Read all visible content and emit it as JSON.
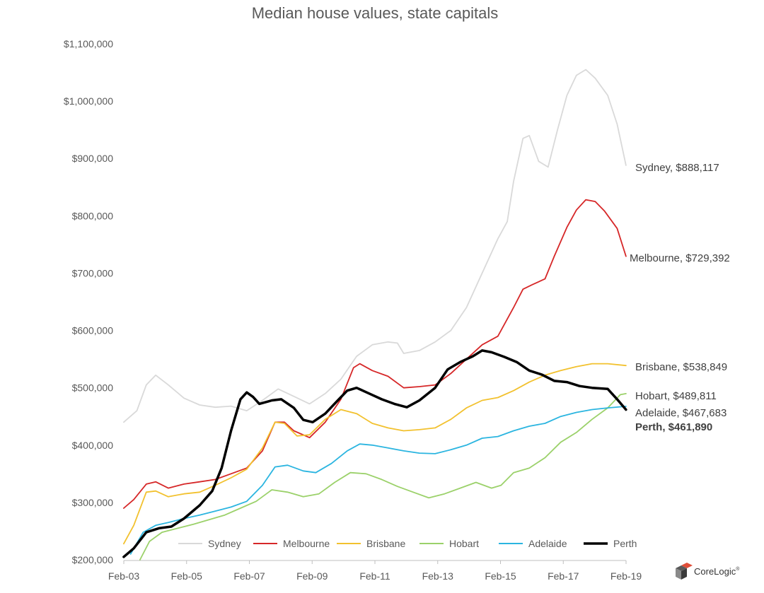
{
  "chart_data": {
    "type": "line",
    "title": "Median house values, state capitals",
    "xlabel": "",
    "ylabel": "",
    "x_ticks": [
      "Feb-03",
      "Feb-05",
      "Feb-07",
      "Feb-09",
      "Feb-11",
      "Feb-13",
      "Feb-15",
      "Feb-17",
      "Feb-19"
    ],
    "x_range": [
      2003.083,
      2019.083
    ],
    "y_ticks": [
      "$200,000",
      "$300,000",
      "$400,000",
      "$500,000",
      "$600,000",
      "$700,000",
      "$800,000",
      "$900,000",
      "$1,000,000",
      "$1,100,000"
    ],
    "ylim": [
      200000,
      1100000
    ],
    "grid": false,
    "legend_position": "bottom",
    "series": [
      {
        "name": "Sydney",
        "color": "#d9d9d9",
        "label": "Sydney, $888,117",
        "bold": false,
        "points": [
          [
            2003.08,
            440000
          ],
          [
            2003.5,
            460000
          ],
          [
            2003.8,
            505000
          ],
          [
            2004.1,
            522000
          ],
          [
            2004.5,
            505000
          ],
          [
            2005.0,
            482000
          ],
          [
            2005.5,
            470000
          ],
          [
            2006.0,
            466000
          ],
          [
            2006.5,
            468000
          ],
          [
            2007.0,
            460000
          ],
          [
            2007.5,
            478000
          ],
          [
            2008.0,
            498000
          ],
          [
            2008.5,
            485000
          ],
          [
            2009.0,
            472000
          ],
          [
            2009.5,
            490000
          ],
          [
            2010.0,
            515000
          ],
          [
            2010.5,
            555000
          ],
          [
            2011.0,
            575000
          ],
          [
            2011.5,
            580000
          ],
          [
            2011.8,
            578000
          ],
          [
            2012.0,
            560000
          ],
          [
            2012.5,
            565000
          ],
          [
            2013.0,
            580000
          ],
          [
            2013.5,
            600000
          ],
          [
            2014.0,
            640000
          ],
          [
            2014.5,
            700000
          ],
          [
            2015.0,
            760000
          ],
          [
            2015.3,
            790000
          ],
          [
            2015.5,
            860000
          ],
          [
            2015.8,
            935000
          ],
          [
            2016.0,
            940000
          ],
          [
            2016.3,
            895000
          ],
          [
            2016.6,
            885000
          ],
          [
            2016.9,
            950000
          ],
          [
            2017.2,
            1010000
          ],
          [
            2017.5,
            1045000
          ],
          [
            2017.8,
            1055000
          ],
          [
            2018.1,
            1040000
          ],
          [
            2018.5,
            1010000
          ],
          [
            2018.8,
            960000
          ],
          [
            2019.08,
            888117
          ]
        ]
      },
      {
        "name": "Melbourne",
        "color": "#d62728",
        "label": "Melbourne, $729,392",
        "bold": false,
        "points": [
          [
            2003.08,
            290000
          ],
          [
            2003.4,
            305000
          ],
          [
            2003.8,
            332000
          ],
          [
            2004.1,
            336000
          ],
          [
            2004.5,
            325000
          ],
          [
            2005.0,
            332000
          ],
          [
            2005.5,
            336000
          ],
          [
            2006.0,
            340000
          ],
          [
            2006.5,
            350000
          ],
          [
            2007.0,
            360000
          ],
          [
            2007.5,
            390000
          ],
          [
            2007.9,
            440000
          ],
          [
            2008.2,
            440000
          ],
          [
            2008.5,
            425000
          ],
          [
            2009.0,
            413000
          ],
          [
            2009.5,
            440000
          ],
          [
            2010.0,
            480000
          ],
          [
            2010.4,
            535000
          ],
          [
            2010.6,
            542000
          ],
          [
            2011.0,
            530000
          ],
          [
            2011.5,
            520000
          ],
          [
            2012.0,
            500000
          ],
          [
            2012.5,
            502000
          ],
          [
            2013.0,
            505000
          ],
          [
            2013.5,
            525000
          ],
          [
            2014.0,
            550000
          ],
          [
            2014.5,
            575000
          ],
          [
            2015.0,
            590000
          ],
          [
            2015.5,
            640000
          ],
          [
            2015.8,
            672000
          ],
          [
            2016.1,
            680000
          ],
          [
            2016.5,
            690000
          ],
          [
            2016.8,
            730000
          ],
          [
            2017.2,
            780000
          ],
          [
            2017.5,
            810000
          ],
          [
            2017.8,
            828000
          ],
          [
            2018.1,
            825000
          ],
          [
            2018.4,
            808000
          ],
          [
            2018.8,
            778000
          ],
          [
            2019.08,
            729392
          ]
        ]
      },
      {
        "name": "Brisbane",
        "color": "#f2c12e",
        "label": "Brisbane, $538,849",
        "bold": false,
        "points": [
          [
            2003.08,
            228000
          ],
          [
            2003.4,
            260000
          ],
          [
            2003.8,
            318000
          ],
          [
            2004.1,
            320000
          ],
          [
            2004.5,
            310000
          ],
          [
            2005.0,
            315000
          ],
          [
            2005.5,
            318000
          ],
          [
            2006.0,
            330000
          ],
          [
            2006.5,
            343000
          ],
          [
            2007.0,
            358000
          ],
          [
            2007.5,
            395000
          ],
          [
            2007.9,
            440000
          ],
          [
            2008.2,
            438000
          ],
          [
            2008.6,
            416000
          ],
          [
            2009.0,
            418000
          ],
          [
            2009.5,
            445000
          ],
          [
            2010.0,
            462000
          ],
          [
            2010.5,
            455000
          ],
          [
            2011.0,
            438000
          ],
          [
            2011.5,
            430000
          ],
          [
            2012.0,
            425000
          ],
          [
            2012.5,
            427000
          ],
          [
            2013.0,
            430000
          ],
          [
            2013.5,
            445000
          ],
          [
            2014.0,
            465000
          ],
          [
            2014.5,
            478000
          ],
          [
            2015.0,
            483000
          ],
          [
            2015.5,
            495000
          ],
          [
            2016.0,
            510000
          ],
          [
            2016.5,
            522000
          ],
          [
            2017.0,
            530000
          ],
          [
            2017.5,
            537000
          ],
          [
            2018.0,
            542000
          ],
          [
            2018.5,
            542000
          ],
          [
            2019.08,
            538849
          ]
        ]
      },
      {
        "name": "Hobart",
        "color": "#9bd16a",
        "label": "Hobart, $489,811",
        "bold": false,
        "points": [
          [
            2003.6,
            200000
          ],
          [
            2003.9,
            232000
          ],
          [
            2004.3,
            248000
          ],
          [
            2004.8,
            255000
          ],
          [
            2005.3,
            262000
          ],
          [
            2005.8,
            270000
          ],
          [
            2006.3,
            278000
          ],
          [
            2006.8,
            290000
          ],
          [
            2007.3,
            302000
          ],
          [
            2007.8,
            322000
          ],
          [
            2008.3,
            318000
          ],
          [
            2008.8,
            310000
          ],
          [
            2009.3,
            315000
          ],
          [
            2009.8,
            335000
          ],
          [
            2010.3,
            352000
          ],
          [
            2010.8,
            350000
          ],
          [
            2011.3,
            340000
          ],
          [
            2011.8,
            328000
          ],
          [
            2012.3,
            318000
          ],
          [
            2012.8,
            308000
          ],
          [
            2013.3,
            315000
          ],
          [
            2013.8,
            325000
          ],
          [
            2014.3,
            335000
          ],
          [
            2014.8,
            325000
          ],
          [
            2015.1,
            330000
          ],
          [
            2015.5,
            352000
          ],
          [
            2016.0,
            360000
          ],
          [
            2016.5,
            378000
          ],
          [
            2017.0,
            405000
          ],
          [
            2017.5,
            422000
          ],
          [
            2018.0,
            445000
          ],
          [
            2018.5,
            465000
          ],
          [
            2018.9,
            488000
          ],
          [
            2019.08,
            489811
          ]
        ]
      },
      {
        "name": "Adelaide",
        "color": "#2bb5e0",
        "label": "Adelaide, $467,683",
        "bold": false,
        "points": [
          [
            2003.3,
            210000
          ],
          [
            2003.7,
            248000
          ],
          [
            2004.1,
            260000
          ],
          [
            2004.5,
            265000
          ],
          [
            2005.0,
            272000
          ],
          [
            2005.5,
            278000
          ],
          [
            2006.0,
            285000
          ],
          [
            2006.5,
            292000
          ],
          [
            2007.0,
            302000
          ],
          [
            2007.5,
            330000
          ],
          [
            2007.9,
            362000
          ],
          [
            2008.3,
            365000
          ],
          [
            2008.8,
            355000
          ],
          [
            2009.2,
            352000
          ],
          [
            2009.7,
            368000
          ],
          [
            2010.2,
            390000
          ],
          [
            2010.6,
            402000
          ],
          [
            2011.0,
            400000
          ],
          [
            2011.5,
            395000
          ],
          [
            2012.0,
            390000
          ],
          [
            2012.5,
            386000
          ],
          [
            2013.0,
            385000
          ],
          [
            2013.5,
            392000
          ],
          [
            2014.0,
            400000
          ],
          [
            2014.5,
            412000
          ],
          [
            2015.0,
            415000
          ],
          [
            2015.5,
            425000
          ],
          [
            2016.0,
            433000
          ],
          [
            2016.5,
            438000
          ],
          [
            2017.0,
            450000
          ],
          [
            2017.5,
            457000
          ],
          [
            2018.0,
            462000
          ],
          [
            2018.5,
            465000
          ],
          [
            2019.08,
            467683
          ]
        ]
      },
      {
        "name": "Perth",
        "color": "#000000",
        "label": "Perth, $461,890",
        "bold": true,
        "points": [
          [
            2003.08,
            205000
          ],
          [
            2003.4,
            220000
          ],
          [
            2003.8,
            248000
          ],
          [
            2004.2,
            255000
          ],
          [
            2004.6,
            258000
          ],
          [
            2005.0,
            272000
          ],
          [
            2005.5,
            295000
          ],
          [
            2005.9,
            320000
          ],
          [
            2006.2,
            360000
          ],
          [
            2006.5,
            425000
          ],
          [
            2006.8,
            480000
          ],
          [
            2007.0,
            492000
          ],
          [
            2007.2,
            484000
          ],
          [
            2007.4,
            472000
          ],
          [
            2007.8,
            478000
          ],
          [
            2008.1,
            480000
          ],
          [
            2008.5,
            465000
          ],
          [
            2008.8,
            444000
          ],
          [
            2009.1,
            440000
          ],
          [
            2009.5,
            455000
          ],
          [
            2009.9,
            478000
          ],
          [
            2010.2,
            495000
          ],
          [
            2010.5,
            500000
          ],
          [
            2010.9,
            490000
          ],
          [
            2011.3,
            480000
          ],
          [
            2011.7,
            472000
          ],
          [
            2012.1,
            466000
          ],
          [
            2012.5,
            478000
          ],
          [
            2013.0,
            500000
          ],
          [
            2013.4,
            532000
          ],
          [
            2013.8,
            545000
          ],
          [
            2014.2,
            555000
          ],
          [
            2014.5,
            565000
          ],
          [
            2014.8,
            562000
          ],
          [
            2015.2,
            554000
          ],
          [
            2015.6,
            545000
          ],
          [
            2016.0,
            530000
          ],
          [
            2016.4,
            523000
          ],
          [
            2016.8,
            512000
          ],
          [
            2017.2,
            510000
          ],
          [
            2017.6,
            503000
          ],
          [
            2018.0,
            500000
          ],
          [
            2018.5,
            498000
          ],
          [
            2018.8,
            480000
          ],
          [
            2019.08,
            461890
          ]
        ]
      }
    ]
  },
  "brand": {
    "logo_text": "CoreLogic",
    "logo_mark": "®"
  }
}
